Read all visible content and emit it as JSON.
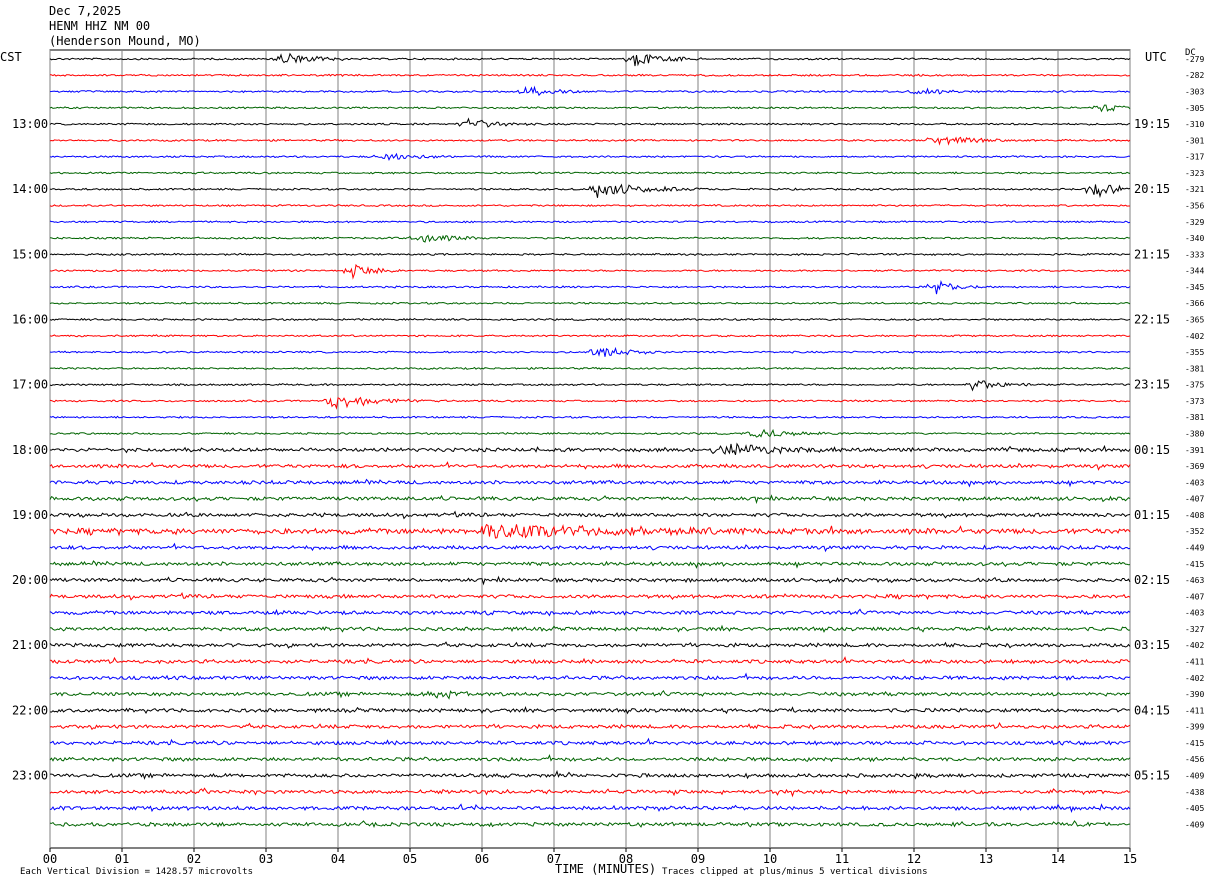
{
  "header": {
    "date": "Dec 7,2025",
    "station": "HENM HHZ NM 00",
    "location": "(Henderson Mound, MO)"
  },
  "left_zone_label": "CST",
  "right_zone_label": "UTC",
  "dc_label": "DC",
  "footer": {
    "scale_note": "Each Vertical Division = 1428.57 microvolts",
    "x_title": "TIME (MINUTES)",
    "clip_note": "Traces clipped at plus/minus 5 vertical divisions"
  },
  "chart_data": {
    "type": "line",
    "title": "HENM HHZ NM 00",
    "xlabel": "TIME (MINUTES)",
    "x_range": [
      0,
      15
    ],
    "x_ticks": [
      "00",
      "01",
      "02",
      "03",
      "04",
      "05",
      "06",
      "07",
      "08",
      "09",
      "10",
      "11",
      "12",
      "13",
      "14",
      "15"
    ],
    "trace_count": 48,
    "trace_colors": [
      "#000000",
      "#ff0000",
      "#0000ff",
      "#006400"
    ],
    "left_time_labels": [
      {
        "row": 4,
        "label": "13:00"
      },
      {
        "row": 8,
        "label": "14:00"
      },
      {
        "row": 12,
        "label": "15:00"
      },
      {
        "row": 16,
        "label": "16:00"
      },
      {
        "row": 20,
        "label": "17:00"
      },
      {
        "row": 24,
        "label": "18:00"
      },
      {
        "row": 28,
        "label": "19:00"
      },
      {
        "row": 32,
        "label": "20:00"
      },
      {
        "row": 36,
        "label": "21:00"
      },
      {
        "row": 40,
        "label": "22:00"
      },
      {
        "row": 44,
        "label": "23:00"
      }
    ],
    "right_time_labels": [
      {
        "row": 4,
        "label": "19:15"
      },
      {
        "row": 8,
        "label": "20:15"
      },
      {
        "row": 12,
        "label": "21:15"
      },
      {
        "row": 16,
        "label": "22:15"
      },
      {
        "row": 20,
        "label": "23:15"
      },
      {
        "row": 24,
        "label": "00:15"
      },
      {
        "row": 28,
        "label": "01:15"
      },
      {
        "row": 32,
        "label": "02:15"
      },
      {
        "row": 36,
        "label": "03:15"
      },
      {
        "row": 40,
        "label": "04:15"
      },
      {
        "row": 44,
        "label": "05:15"
      }
    ],
    "dc_offsets": [
      "-279",
      "-282",
      "-303",
      "-305",
      "-310",
      "-301",
      "-317",
      "-323",
      "-321",
      "-356",
      "-329",
      "-340",
      "-333",
      "-344",
      "-345",
      "-366",
      "-365",
      "-402",
      "-355",
      "-381",
      "-375",
      "-373",
      "-381",
      "-380",
      "-391",
      "-369",
      "-403",
      "-407",
      "-408",
      "-352",
      "-449",
      "-415",
      "-463",
      "-407",
      "-403",
      "-327",
      "-402",
      "-411",
      "-402",
      "-390",
      "-411",
      "-399",
      "-415",
      "-456",
      "-409",
      "-438",
      "-405",
      "-409"
    ],
    "noise_levels": [
      1,
      1,
      1,
      1,
      1,
      1,
      1,
      1,
      1,
      1,
      1,
      1,
      1,
      1,
      1,
      1,
      1,
      1,
      1,
      1,
      1,
      1,
      1,
      1,
      2,
      2,
      2,
      2,
      2,
      3,
      2,
      2,
      2,
      2,
      2,
      2,
      2,
      2,
      2,
      2,
      2,
      2,
      2,
      2,
      2,
      2,
      2,
      2
    ],
    "events": [
      {
        "row": 0,
        "minute": 3.2,
        "amplitude": 9,
        "duration": 1.0
      },
      {
        "row": 0,
        "minute": 8.1,
        "amplitude": 9,
        "duration": 1.0
      },
      {
        "row": 2,
        "minute": 6.6,
        "amplitude": 6,
        "duration": 0.9
      },
      {
        "row": 2,
        "minute": 12.0,
        "amplitude": 4,
        "duration": 1.0
      },
      {
        "row": 3,
        "minute": 14.6,
        "amplitude": 5,
        "duration": 0.6
      },
      {
        "row": 4,
        "minute": 5.8,
        "amplitude": 7,
        "duration": 0.9
      },
      {
        "row": 5,
        "minute": 12.3,
        "amplitude": 7,
        "duration": 1.0
      },
      {
        "row": 6,
        "minute": 4.6,
        "amplitude": 6,
        "duration": 1.0
      },
      {
        "row": 8,
        "minute": 7.6,
        "amplitude": 10,
        "duration": 1.5
      },
      {
        "row": 8,
        "minute": 14.5,
        "amplitude": 10,
        "duration": 0.8
      },
      {
        "row": 11,
        "minute": 5.1,
        "amplitude": 7,
        "duration": 1.0
      },
      {
        "row": 13,
        "minute": 4.2,
        "amplitude": 8,
        "duration": 0.8
      },
      {
        "row": 14,
        "minute": 12.3,
        "amplitude": 10,
        "duration": 0.6
      },
      {
        "row": 18,
        "minute": 7.6,
        "amplitude": 8,
        "duration": 1.0
      },
      {
        "row": 20,
        "minute": 12.8,
        "amplitude": 7,
        "duration": 1.0
      },
      {
        "row": 21,
        "minute": 3.9,
        "amplitude": 10,
        "duration": 1.4
      },
      {
        "row": 23,
        "minute": 9.8,
        "amplitude": 6,
        "duration": 1.2
      },
      {
        "row": 24,
        "minute": 9.3,
        "amplitude": 7,
        "duration": 2.0
      },
      {
        "row": 29,
        "minute": 6.0,
        "amplitude": 8,
        "duration": 4.0
      },
      {
        "row": 39,
        "minute": 5.3,
        "amplitude": 4,
        "duration": 0.8
      }
    ]
  }
}
